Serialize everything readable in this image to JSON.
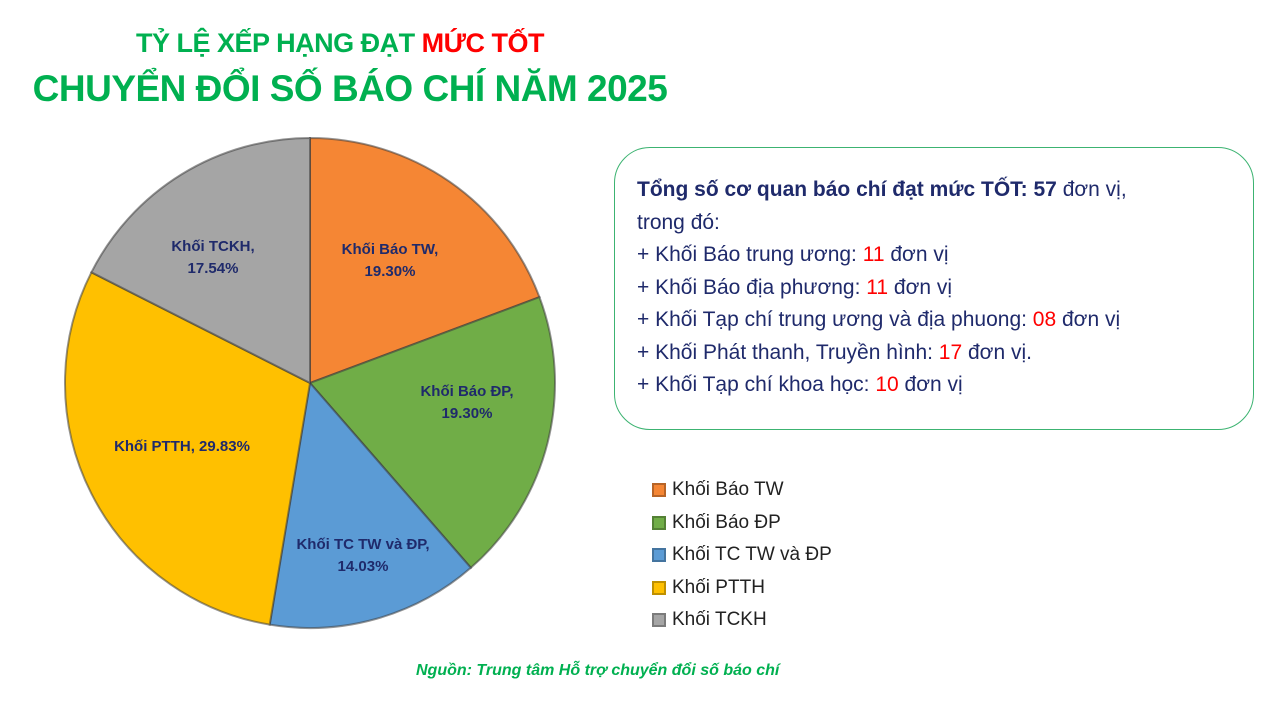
{
  "title": {
    "line1_prefix": "TỶ LỆ XẾP HẠNG ĐẠT ",
    "line1_highlight": "MỨC TỐT",
    "line2": "CHUYỂN ĐỔI SỐ BÁO CHÍ NĂM 2025"
  },
  "info": {
    "total_label": "Tổng số cơ quan báo chí đạt mức TỐT:",
    "total_value": "57",
    "total_unit": " đơn vị,",
    "intro": "trong đó:",
    "items": [
      {
        "prefix": "+ Khối Báo trung ương: ",
        "value": "11",
        "suffix": " đơn vị"
      },
      {
        "prefix": "+ Khối Báo địa phương: ",
        "value": "11",
        "suffix": " đơn vị"
      },
      {
        "prefix": "+ Khối Tạp chí trung ương và địa phuong: ",
        "value": "08",
        "suffix": " đơn vị"
      },
      {
        "prefix": "+ Khối Phát thanh, Truyền hình: ",
        "value": "17",
        "suffix": " đơn vị."
      },
      {
        "prefix": "+ Khối Tạp chí khoa học: ",
        "value": "10",
        "suffix": " đơn vị"
      }
    ]
  },
  "legend": {
    "items": [
      {
        "label": "Khối Báo TW",
        "color": "#f58634"
      },
      {
        "label": "Khối Báo ĐP",
        "color": "#70ad47"
      },
      {
        "label": "Khối TC TW và ĐP",
        "color": "#5b9bd5"
      },
      {
        "label": "Khối PTTH",
        "color": "#ffc000"
      },
      {
        "label": "Khối TCKH",
        "color": "#a5a5a5"
      }
    ]
  },
  "slice_labels": [
    {
      "line1": "Khối  Báo TW,",
      "line2": "19.30%"
    },
    {
      "line1": "Khối  Báo ĐP,",
      "line2": "19.30%"
    },
    {
      "line1": "Khối  TC TW và ĐP,",
      "line2": "14.03%"
    },
    {
      "line1": "Khối  PTTH, 29.83%",
      "line2": ""
    },
    {
      "line1": "Khối  TCKH,",
      "line2": "17.54%"
    }
  ],
  "source": "Nguồn: Trung tâm Hỗ trợ chuyển đổi số báo chí",
  "chart_data": {
    "type": "pie",
    "title": "TỶ LỆ XẾP HẠNG ĐẠT MỨC TỐT CHUYỂN ĐỔI SỐ BÁO CHÍ NĂM 2025",
    "categories": [
      "Khối Báo TW",
      "Khối Báo ĐP",
      "Khối TC TW và ĐP",
      "Khối PTTH",
      "Khối TCKH"
    ],
    "values": [
      19.3,
      19.3,
      14.03,
      29.83,
      17.54
    ],
    "counts": [
      11,
      11,
      8,
      17,
      10
    ],
    "unit": "%",
    "colors": [
      "#f58634",
      "#70ad47",
      "#5b9bd5",
      "#ffc000",
      "#a5a5a5"
    ],
    "start_angle": "12 o'clock, clockwise",
    "legend_position": "right-bottom",
    "data_labels": [
      "Khối Báo TW, 19.30%",
      "Khối Báo ĐP, 19.30%",
      "Khối TC TW và ĐP, 14.03%",
      "Khối PTTH, 29.83%",
      "Khối TCKH, 17.54%"
    ]
  }
}
